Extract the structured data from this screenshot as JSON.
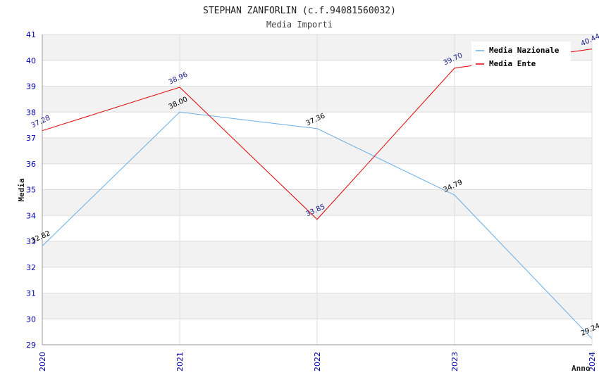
{
  "chart_data": {
    "type": "line",
    "title": "STEPHAN ZANFORLIN (c.f.94081560032)",
    "subtitle": "Media Importi",
    "xlabel": "Anno",
    "ylabel": "Media",
    "categories": [
      "2020",
      "2021",
      "2022",
      "2023",
      "2024"
    ],
    "ylim": [
      29,
      41
    ],
    "yticks": [
      "29",
      "30",
      "31",
      "32",
      "33",
      "34",
      "35",
      "36",
      "37",
      "38",
      "39",
      "40",
      "41"
    ],
    "grid": "horizontal alternating bands",
    "legend_position": "top-right",
    "series": [
      {
        "name": "Media Nazionale",
        "color": "#6aaee6",
        "label_color": "#000000",
        "values": [
          32.82,
          38.0,
          37.36,
          34.79,
          29.24
        ],
        "labels": [
          "32.82",
          "38.00",
          "37.36",
          "34.79",
          "29.24"
        ]
      },
      {
        "name": "Media Ente",
        "color": "#dd0000",
        "label_color": "#1a1a8c",
        "values": [
          37.28,
          38.96,
          33.85,
          39.7,
          40.44
        ],
        "labels": [
          "37.28",
          "38.96",
          "33.85",
          "39.70",
          "40.44"
        ]
      }
    ],
    "colors": {
      "tick": "#0000aa",
      "band": "#f2f2f2",
      "grid": "#dddddd"
    }
  }
}
